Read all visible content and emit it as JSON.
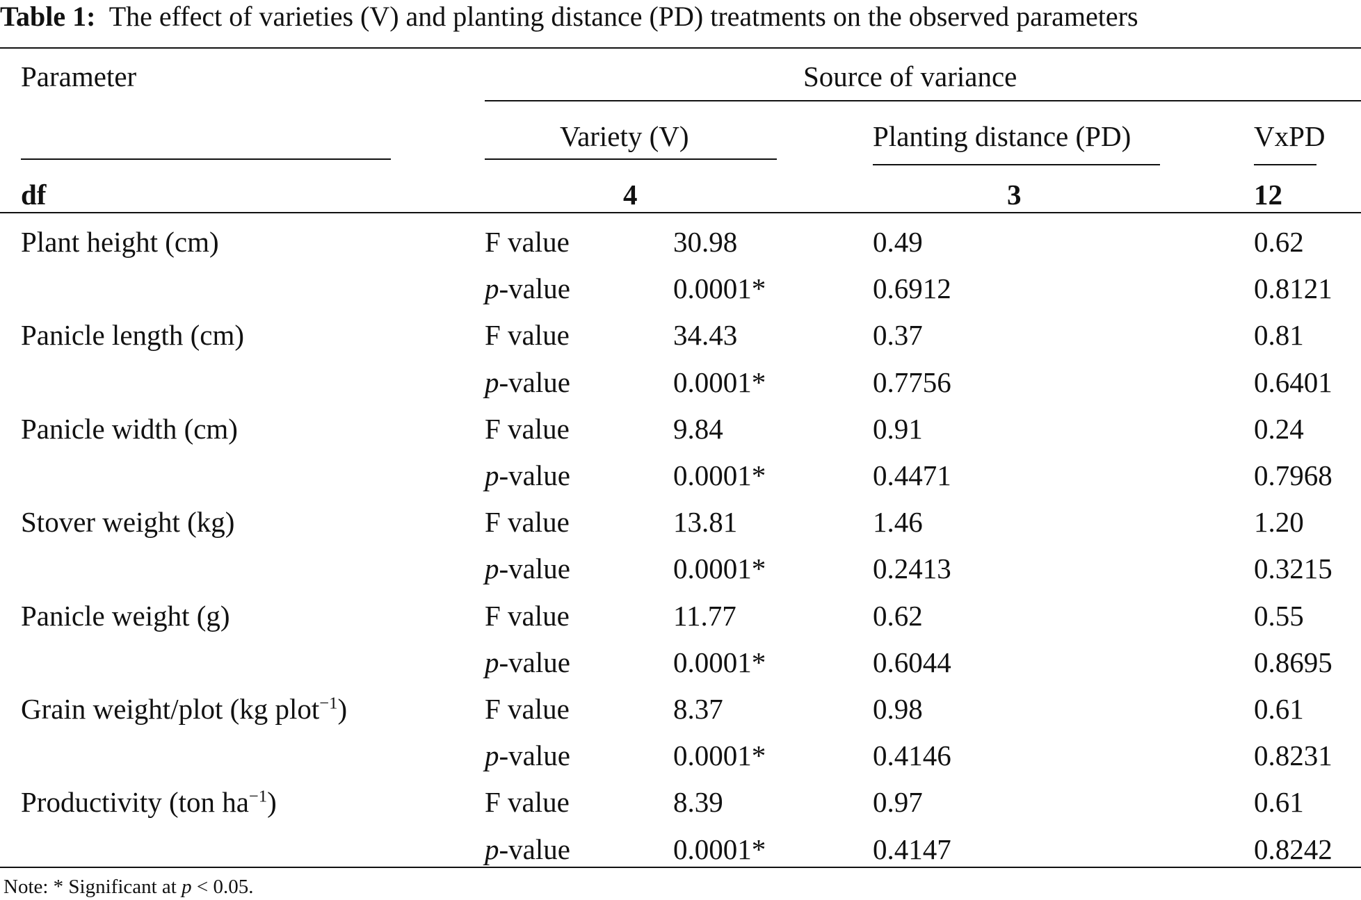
{
  "caption": {
    "label": "Table 1:",
    "text": "The effect of varieties (V) and planting distance (PD) treatments on the observed parameters"
  },
  "header": {
    "parameter": "Parameter",
    "source": "Source of variance",
    "variety": "Variety (V)",
    "planting": "Planting distance (PD)",
    "interaction": "VxPD",
    "df_label": "df",
    "df_variety": "4",
    "df_planting": "3",
    "df_interaction": "12"
  },
  "stat_labels": {
    "f": "F value",
    "p_italic": "p",
    "p_rest": "-value"
  },
  "rows": [
    {
      "name": "Plant height (cm)",
      "sup": "",
      "suffix": "",
      "f": {
        "v": "30.98",
        "pd": "0.49",
        "vxpd": "0.62"
      },
      "p": {
        "v": "0.0001*",
        "pd": "0.6912",
        "vxpd": "0.8121"
      }
    },
    {
      "name": "Panicle length (cm)",
      "sup": "",
      "suffix": "",
      "f": {
        "v": "34.43",
        "pd": "0.37",
        "vxpd": "0.81"
      },
      "p": {
        "v": "0.0001*",
        "pd": "0.7756",
        "vxpd": "0.6401"
      }
    },
    {
      "name": "Panicle width (cm)",
      "sup": "",
      "suffix": "",
      "f": {
        "v": "9.84",
        "pd": "0.91",
        "vxpd": "0.24"
      },
      "p": {
        "v": "0.0001*",
        "pd": "0.4471",
        "vxpd": "0.7968"
      }
    },
    {
      "name": "Stover weight (kg)",
      "sup": "",
      "suffix": "",
      "f": {
        "v": "13.81",
        "pd": "1.46",
        "vxpd": "1.20"
      },
      "p": {
        "v": "0.0001*",
        "pd": "0.2413",
        "vxpd": "0.3215"
      }
    },
    {
      "name": "Panicle weight (g)",
      "sup": "",
      "suffix": "",
      "f": {
        "v": "11.77",
        "pd": "0.62",
        "vxpd": "0.55"
      },
      "p": {
        "v": "0.0001*",
        "pd": "0.6044",
        "vxpd": "0.8695"
      }
    },
    {
      "name": "Grain weight/plot (kg plot",
      "sup": "−1",
      "suffix": ")",
      "f": {
        "v": "8.37",
        "pd": "0.98",
        "vxpd": "0.61"
      },
      "p": {
        "v": "0.0001*",
        "pd": "0.4146",
        "vxpd": "0.8231"
      }
    },
    {
      "name": "Productivity (ton ha",
      "sup": "−1",
      "suffix": ")",
      "f": {
        "v": "8.39",
        "pd": "0.97",
        "vxpd": "0.61"
      },
      "p": {
        "v": "0.0001*",
        "pd": "0.4147",
        "vxpd": "0.8242"
      }
    }
  ],
  "note": {
    "prefix": "Note: * Significant at ",
    "p": "p",
    "suffix": " < 0.05."
  }
}
